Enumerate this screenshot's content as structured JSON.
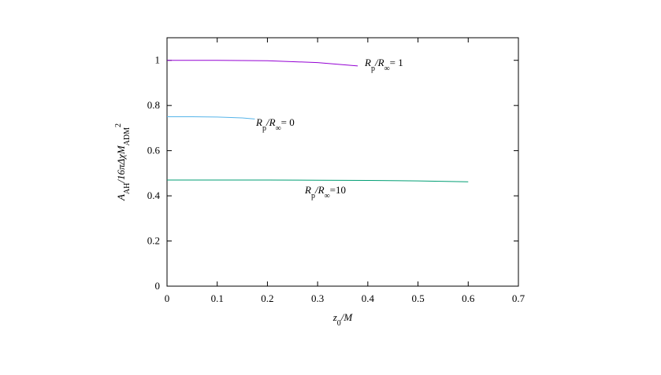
{
  "chart_data": {
    "type": "line",
    "x_label": [
      "z",
      "0",
      "/M"
    ],
    "y_label": [
      "A",
      "AH",
      "/16πΔχM",
      "ADM",
      "2"
    ],
    "xlim": [
      0,
      0.7
    ],
    "xticks": [
      0,
      0.1,
      0.2,
      0.3,
      0.4,
      0.5,
      0.6,
      0.7
    ],
    "ylim": [
      0,
      1.1
    ],
    "yticks": [
      0,
      0.2,
      0.4,
      0.6,
      0.8,
      1
    ],
    "grid": false,
    "series": [
      {
        "name": [
          "R",
          "p",
          "/R",
          "∞",
          "= 1"
        ],
        "color": "#9400d3",
        "x": [
          0,
          0.1,
          0.2,
          0.3,
          0.38
        ],
        "values": [
          1,
          1,
          0.998,
          0.99,
          0.975
        ]
      },
      {
        "name": [
          "R",
          "p",
          "/R",
          "∞",
          "= 0"
        ],
        "color": "#56b4e9",
        "x": [
          0,
          0.05,
          0.1,
          0.15,
          0.175
        ],
        "values": [
          0.75,
          0.75,
          0.749,
          0.745,
          0.74
        ]
      },
      {
        "name": [
          "R",
          "p",
          "/R",
          "∞",
          "=10"
        ],
        "color": "#009e73",
        "x": [
          0,
          0.1,
          0.2,
          0.3,
          0.4,
          0.5,
          0.6
        ],
        "values": [
          0.47,
          0.47,
          0.47,
          0.469,
          0.468,
          0.466,
          0.462
        ]
      }
    ]
  }
}
